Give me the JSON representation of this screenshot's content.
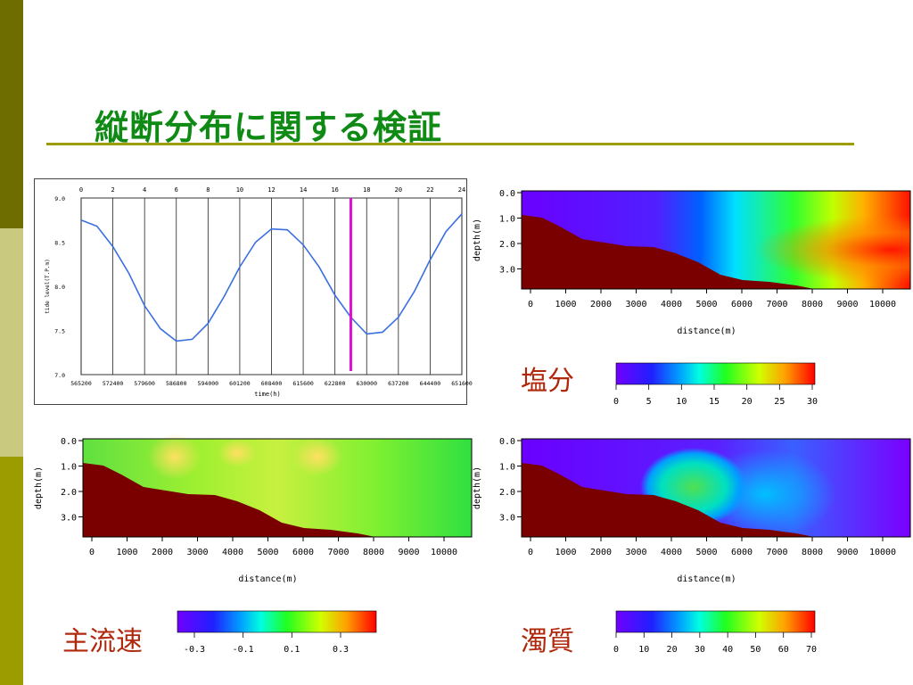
{
  "slide": {
    "title": "縦断分布に関する検証",
    "side_colors": [
      "#6e6e00",
      "#c9c980",
      "#9c9c00"
    ]
  },
  "tide_chart": {
    "top_ticks": [
      "0",
      "2",
      "4",
      "6",
      "8",
      "10",
      "12",
      "14",
      "16",
      "18",
      "20",
      "22",
      "24"
    ],
    "y_ticks": [
      "9.0",
      "8.5",
      "8.0",
      "7.5",
      "7.0"
    ],
    "x_ticks": [
      "565200",
      "572400",
      "579600",
      "586800",
      "594000",
      "601200",
      "608400",
      "615600",
      "622800",
      "630000",
      "637200",
      "644400",
      "651600"
    ],
    "xlabel": "time(h)",
    "ylabel": "tide level(T.P.m)",
    "line_color": "#3a6fe0",
    "marker_color": "#e010d0",
    "marker_hour": 17,
    "y_range": [
      7.0,
      9.0
    ],
    "series_hours": [
      0,
      1,
      2,
      3,
      4,
      5,
      6,
      7,
      8,
      9,
      10,
      11,
      12,
      13,
      14,
      15,
      16,
      17,
      18,
      19,
      20,
      21,
      22,
      23,
      24
    ],
    "series_values": [
      8.75,
      8.68,
      8.45,
      8.15,
      7.78,
      7.52,
      7.38,
      7.4,
      7.58,
      7.88,
      8.22,
      8.5,
      8.65,
      8.64,
      8.47,
      8.22,
      7.9,
      7.65,
      7.46,
      7.48,
      7.65,
      7.94,
      8.3,
      8.62,
      8.82
    ]
  },
  "sections": {
    "y_ticks": [
      "0.0",
      "1.0",
      "2.0",
      "3.0"
    ],
    "x_ticks": [
      "0",
      "1000",
      "2000",
      "3000",
      "4000",
      "5000",
      "6000",
      "7000",
      "8000",
      "9000",
      "10000"
    ],
    "xlabel": "distance(m)",
    "ylabel": "depth(m)",
    "bed_color": "#7a0000"
  },
  "salinity": {
    "caption": "塩分",
    "colorbar_ticks": [
      "0",
      "5",
      "10",
      "15",
      "20",
      "25",
      "30"
    ]
  },
  "velocity": {
    "caption": "主流速",
    "colorbar_ticks": [
      "-0.3",
      "-0.1",
      "0.1",
      "0.3"
    ]
  },
  "turbidity": {
    "caption": "濁質",
    "colorbar_ticks": [
      "0",
      "10",
      "20",
      "30",
      "40",
      "50",
      "60",
      "70"
    ]
  }
}
